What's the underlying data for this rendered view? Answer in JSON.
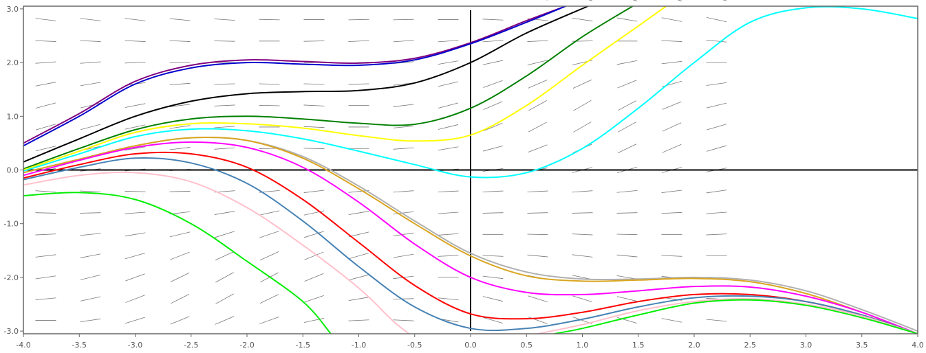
{
  "chart_data": {
    "type": "line",
    "subtype": "slope-field",
    "title": "",
    "xlabel": "",
    "ylabel": "",
    "xlim": [
      -4.0,
      4.0
    ],
    "ylim": [
      -3.05,
      3.05
    ],
    "grid": false,
    "legend": "none",
    "axes_through_origin": true,
    "x_ticks": [
      "-4.0",
      "-3.5",
      "-3.0",
      "-2.5",
      "-2.0",
      "-1.5",
      "-1.0",
      "-0.5",
      "0.0",
      "0.5",
      "1.0",
      "1.5",
      "2.0",
      "2.5",
      "3.0",
      "3.5",
      "4.0"
    ],
    "x_tick_values": [
      -4.0,
      -3.5,
      -3.0,
      -2.5,
      -2.0,
      -1.5,
      -1.0,
      -0.5,
      0.0,
      0.5,
      1.0,
      1.5,
      2.0,
      2.5,
      3.0,
      3.5,
      4.0
    ],
    "y_ticks": [
      "3.0",
      "2.0",
      "1.0",
      "0.0",
      "-1.0",
      "-2.0",
      "-3.0"
    ],
    "y_tick_values": [
      3.0,
      2.0,
      1.0,
      0.0,
      -1.0,
      -2.0,
      -3.0
    ],
    "slope_field": {
      "color": "#777777",
      "x_start": -3.8,
      "x_step": 0.4,
      "y_start": -2.8,
      "y_step": 0.4,
      "slopes": [
        [
          -0.0,
          0.3,
          0.65,
          0.85,
          0.9,
          0.75,
          0.45,
          0.1,
          -0.1,
          -0.35,
          -0.6,
          -0.75,
          -0.75,
          -0.6,
          -0.4,
          -0.2
        ],
        [
          0.2,
          0.45,
          0.8,
          1.05,
          1.15,
          1.0,
          0.7,
          0.35,
          0.05,
          -0.2,
          -0.5,
          -0.65,
          -0.65,
          -0.5,
          -0.3,
          -0.1
        ],
        [
          0.3,
          0.5,
          0.75,
          1.0,
          1.15,
          1.1,
          0.85,
          0.55,
          0.25,
          0.0,
          -0.25,
          -0.4,
          -0.45,
          -0.35,
          -0.2,
          -0.05
        ],
        [
          0.25,
          0.4,
          0.6,
          0.8,
          0.95,
          0.95,
          0.85,
          0.6,
          0.35,
          0.1,
          -0.1,
          -0.2,
          -0.25,
          -0.2,
          -0.1,
          0.0
        ],
        [
          0.1,
          0.2,
          0.35,
          0.5,
          0.65,
          0.7,
          0.65,
          0.5,
          0.3,
          0.15,
          0.0,
          -0.05,
          -0.1,
          -0.05,
          0.0,
          0.1
        ],
        [
          -0.05,
          0.05,
          0.15,
          0.25,
          0.35,
          0.45,
          0.45,
          0.35,
          0.25,
          0.15,
          0.05,
          0.05,
          0.05,
          0.05,
          0.1,
          0.15
        ],
        [
          -0.15,
          -0.1,
          -0.05,
          0.05,
          0.15,
          0.2,
          0.25,
          0.2,
          0.15,
          0.1,
          0.1,
          0.1,
          0.15,
          0.2,
          0.25,
          0.3
        ],
        [
          0.3,
          0.25,
          0.2,
          0.15,
          0.1,
          0.05,
          0.0,
          0.05,
          0.1,
          0.2,
          0.3,
          0.45,
          0.55,
          0.6,
          0.55,
          0.4
        ],
        [
          0.5,
          0.45,
          0.35,
          0.25,
          0.15,
          0.05,
          -0.05,
          0.0,
          0.15,
          0.35,
          0.55,
          0.8,
          0.95,
          1.0,
          0.9,
          0.6
        ],
        [
          0.6,
          0.55,
          0.45,
          0.3,
          0.15,
          0.0,
          -0.1,
          0.0,
          0.2,
          0.5,
          0.85,
          1.1,
          1.2,
          1.15,
          0.95,
          0.6
        ],
        [
          0.55,
          0.5,
          0.4,
          0.25,
          0.1,
          -0.05,
          -0.1,
          0.0,
          0.25,
          0.55,
          0.9,
          1.15,
          1.2,
          1.1,
          0.85,
          0.5
        ],
        [
          0.4,
          0.35,
          0.3,
          0.15,
          0.05,
          -0.05,
          -0.05,
          0.05,
          0.25,
          0.5,
          0.75,
          0.9,
          0.95,
          0.85,
          0.6,
          0.3
        ],
        [
          0.15,
          0.15,
          0.1,
          0.05,
          0.0,
          0.0,
          0.05,
          0.1,
          0.2,
          0.35,
          0.45,
          0.5,
          0.5,
          0.4,
          0.25,
          0.05
        ],
        [
          -0.1,
          -0.1,
          -0.1,
          -0.1,
          -0.05,
          0.0,
          0.05,
          0.1,
          0.15,
          0.15,
          0.15,
          0.1,
          0.05,
          0.0,
          -0.1,
          -0.2
        ],
        [
          -0.25,
          -0.25,
          -0.25,
          -0.2,
          -0.15,
          -0.05,
          0.0,
          0.05,
          0.05,
          0.0,
          -0.1,
          -0.2,
          -0.3,
          -0.35,
          -0.4,
          -0.45
        ],
        [
          -0.3,
          -0.3,
          -0.3,
          -0.25,
          -0.2,
          -0.1,
          -0.05,
          -0.05,
          -0.05,
          -0.1,
          -0.25,
          -0.4,
          -0.55,
          -0.6,
          -0.6,
          -0.55
        ]
      ]
    },
    "series": [
      {
        "color": "#800080",
        "points": [
          [
            -4.0,
            0.5
          ],
          [
            -3.5,
            1.05
          ],
          [
            -3.0,
            1.65
          ],
          [
            -2.5,
            1.95
          ],
          [
            -2.0,
            2.05
          ],
          [
            -1.5,
            2.02
          ],
          [
            -1.0,
            1.99
          ],
          [
            -0.5,
            2.08
          ],
          [
            0.0,
            2.37
          ],
          [
            0.5,
            2.78
          ],
          [
            0.85,
            3.05
          ]
        ]
      },
      {
        "color": "#0000cd",
        "points": [
          [
            -4.0,
            0.45
          ],
          [
            -3.5,
            1.0
          ],
          [
            -3.0,
            1.6
          ],
          [
            -2.5,
            1.9
          ],
          [
            -2.0,
            2.0
          ],
          [
            -1.5,
            1.97
          ],
          [
            -1.0,
            1.95
          ],
          [
            -0.5,
            2.05
          ],
          [
            0.0,
            2.35
          ],
          [
            0.5,
            2.75
          ],
          [
            0.85,
            3.05
          ]
        ]
      },
      {
        "color": "#000000",
        "points": [
          [
            -4.0,
            0.15
          ],
          [
            -3.5,
            0.58
          ],
          [
            -3.0,
            1.0
          ],
          [
            -2.5,
            1.28
          ],
          [
            -2.0,
            1.42
          ],
          [
            -1.5,
            1.46
          ],
          [
            -1.0,
            1.48
          ],
          [
            -0.5,
            1.62
          ],
          [
            0.0,
            2.0
          ],
          [
            0.5,
            2.55
          ],
          [
            1.05,
            3.05
          ]
        ]
      },
      {
        "color": "#008000",
        "points": [
          [
            -4.0,
            0.02
          ],
          [
            -3.5,
            0.4
          ],
          [
            -3.0,
            0.75
          ],
          [
            -2.5,
            0.95
          ],
          [
            -2.0,
            1.0
          ],
          [
            -1.5,
            0.95
          ],
          [
            -1.0,
            0.87
          ],
          [
            -0.5,
            0.85
          ],
          [
            0.0,
            1.15
          ],
          [
            0.5,
            1.75
          ],
          [
            1.0,
            2.48
          ],
          [
            1.45,
            3.05
          ]
        ]
      },
      {
        "color": "#ffff00",
        "points": [
          [
            -4.0,
            0.0
          ],
          [
            -3.5,
            0.35
          ],
          [
            -3.0,
            0.7
          ],
          [
            -2.5,
            0.86
          ],
          [
            -2.0,
            0.86
          ],
          [
            -1.5,
            0.78
          ],
          [
            -1.0,
            0.64
          ],
          [
            -0.5,
            0.54
          ],
          [
            0.0,
            0.65
          ],
          [
            0.5,
            1.2
          ],
          [
            1.0,
            1.95
          ],
          [
            1.5,
            2.68
          ],
          [
            1.75,
            3.05
          ]
        ]
      },
      {
        "color": "#00ffff",
        "points": [
          [
            -4.0,
            -0.02
          ],
          [
            -3.5,
            0.3
          ],
          [
            -3.0,
            0.62
          ],
          [
            -2.5,
            0.76
          ],
          [
            -2.0,
            0.73
          ],
          [
            -1.5,
            0.58
          ],
          [
            -1.0,
            0.35
          ],
          [
            -0.5,
            0.1
          ],
          [
            0.0,
            -0.13
          ],
          [
            0.5,
            -0.05
          ],
          [
            1.0,
            0.4
          ],
          [
            1.5,
            1.15
          ],
          [
            2.0,
            2.0
          ],
          [
            2.5,
            2.75
          ],
          [
            3.0,
            3.02
          ],
          [
            3.5,
            3.0
          ],
          [
            4.0,
            2.82
          ]
        ]
      },
      {
        "color": "#b0b0b0",
        "points": [
          [
            -4.0,
            -0.05
          ],
          [
            -3.5,
            0.2
          ],
          [
            -3.0,
            0.45
          ],
          [
            -2.5,
            0.6
          ],
          [
            -2.0,
            0.55
          ],
          [
            -1.5,
            0.25
          ],
          [
            -1.0,
            -0.3
          ],
          [
            -0.5,
            -0.95
          ],
          [
            0.0,
            -1.55
          ],
          [
            0.5,
            -1.9
          ],
          [
            1.0,
            -2.03
          ],
          [
            1.5,
            -2.03
          ],
          [
            2.0,
            -2.0
          ],
          [
            2.5,
            -2.05
          ],
          [
            3.0,
            -2.25
          ],
          [
            3.5,
            -2.6
          ],
          [
            4.0,
            -3.0
          ]
        ]
      },
      {
        "color": "#daa520",
        "points": [
          [
            -4.0,
            -0.05
          ],
          [
            -3.5,
            0.2
          ],
          [
            -3.0,
            0.45
          ],
          [
            -2.5,
            0.6
          ],
          [
            -2.0,
            0.55
          ],
          [
            -1.5,
            0.22
          ],
          [
            -1.0,
            -0.35
          ],
          [
            -0.5,
            -1.0
          ],
          [
            0.0,
            -1.6
          ],
          [
            0.5,
            -1.97
          ],
          [
            1.0,
            -2.07
          ],
          [
            1.5,
            -2.05
          ],
          [
            2.0,
            -2.02
          ],
          [
            2.5,
            -2.08
          ],
          [
            3.0,
            -2.3
          ],
          [
            3.5,
            -2.65
          ],
          [
            4.0,
            -3.05
          ]
        ]
      },
      {
        "color": "#ff00ff",
        "points": [
          [
            -4.0,
            -0.1
          ],
          [
            -3.5,
            0.18
          ],
          [
            -3.0,
            0.42
          ],
          [
            -2.5,
            0.52
          ],
          [
            -2.0,
            0.42
          ],
          [
            -1.5,
            0.05
          ],
          [
            -1.0,
            -0.6
          ],
          [
            -0.5,
            -1.38
          ],
          [
            0.0,
            -2.0
          ],
          [
            0.5,
            -2.28
          ],
          [
            1.0,
            -2.32
          ],
          [
            1.5,
            -2.25
          ],
          [
            2.0,
            -2.17
          ],
          [
            2.5,
            -2.18
          ],
          [
            3.0,
            -2.35
          ],
          [
            3.5,
            -2.65
          ],
          [
            4.0,
            -3.05
          ]
        ]
      },
      {
        "color": "#ff0000",
        "points": [
          [
            -4.0,
            -0.15
          ],
          [
            -3.5,
            0.1
          ],
          [
            -3.0,
            0.3
          ],
          [
            -2.5,
            0.3
          ],
          [
            -2.0,
            0.05
          ],
          [
            -1.5,
            -0.55
          ],
          [
            -1.0,
            -1.35
          ],
          [
            -0.5,
            -2.15
          ],
          [
            0.0,
            -2.68
          ],
          [
            0.5,
            -2.77
          ],
          [
            1.0,
            -2.65
          ],
          [
            1.5,
            -2.45
          ],
          [
            2.0,
            -2.32
          ],
          [
            2.5,
            -2.32
          ],
          [
            3.0,
            -2.45
          ],
          [
            3.5,
            -2.7
          ],
          [
            4.0,
            -3.05
          ]
        ]
      },
      {
        "color": "#4682b4",
        "points": [
          [
            -4.0,
            -0.18
          ],
          [
            -3.5,
            0.05
          ],
          [
            -3.0,
            0.22
          ],
          [
            -2.5,
            0.13
          ],
          [
            -2.0,
            -0.25
          ],
          [
            -1.5,
            -0.95
          ],
          [
            -1.0,
            -1.8
          ],
          [
            -0.5,
            -2.55
          ],
          [
            0.0,
            -2.95
          ],
          [
            0.5,
            -2.95
          ],
          [
            1.0,
            -2.78
          ],
          [
            1.5,
            -2.55
          ],
          [
            2.0,
            -2.38
          ],
          [
            2.5,
            -2.35
          ],
          [
            3.0,
            -2.45
          ],
          [
            3.5,
            -2.7
          ],
          [
            4.0,
            -3.05
          ]
        ]
      },
      {
        "color": "#ffc0cb",
        "points": [
          [
            -4.0,
            -0.28
          ],
          [
            -3.5,
            -0.1
          ],
          [
            -3.0,
            -0.05
          ],
          [
            -2.5,
            -0.22
          ],
          [
            -2.0,
            -0.7
          ],
          [
            -1.5,
            -1.4
          ],
          [
            -1.0,
            -2.2
          ],
          [
            -0.7,
            -2.8
          ],
          [
            -0.55,
            -3.05
          ]
        ]
      },
      {
        "color": "#ffc0cb",
        "points": [
          [
            0.6,
            -3.05
          ],
          [
            1.0,
            -2.88
          ],
          [
            1.5,
            -2.62
          ],
          [
            2.0,
            -2.45
          ],
          [
            2.5,
            -2.4
          ],
          [
            3.0,
            -2.5
          ],
          [
            3.5,
            -2.72
          ],
          [
            4.0,
            -3.05
          ]
        ]
      },
      {
        "color": "#00ee00",
        "points": [
          [
            -4.0,
            -0.48
          ],
          [
            -3.5,
            -0.42
          ],
          [
            -3.0,
            -0.55
          ],
          [
            -2.5,
            -1.0
          ],
          [
            -2.0,
            -1.7
          ],
          [
            -1.5,
            -2.45
          ],
          [
            -1.25,
            -3.05
          ]
        ]
      },
      {
        "color": "#00ee00",
        "points": [
          [
            0.75,
            -3.05
          ],
          [
            1.0,
            -2.95
          ],
          [
            1.5,
            -2.7
          ],
          [
            2.0,
            -2.48
          ],
          [
            2.5,
            -2.42
          ],
          [
            3.0,
            -2.52
          ],
          [
            3.5,
            -2.75
          ],
          [
            4.0,
            -3.05
          ]
        ]
      }
    ]
  }
}
